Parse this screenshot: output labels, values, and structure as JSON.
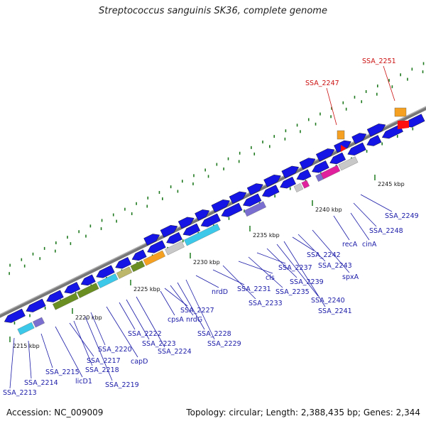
{
  "title": "Streptococcus sanguinis SK36, complete genome",
  "accession": "Accession: NC_009009",
  "topology": "Topology: circular; Length: 2,388,435 bp; Genes: 2,344",
  "colors": {
    "backbone": "#8c8c8c",
    "cds_forward": "#1515e6",
    "cds_reverse": "#1515e6",
    "label_blue": "#1a1aa8",
    "label_red": "#cc1111",
    "tick_green": "#1f7a1f",
    "olive": "#6b8e23",
    "cyan": "#3cc8e8",
    "orange": "#f5a020",
    "magenta": "#e0209c",
    "gray": "#c8c8c8",
    "khaki": "#bdb76b",
    "lavender": "#7a6fd0",
    "red": "#ff1010"
  },
  "kbp_labels": [
    "2215 kbp",
    "2220 kbp",
    "2225 kbp",
    "2230 kbp",
    "2235 kbp",
    "2240 kbp",
    "2245 kbp"
  ],
  "gene_labels": [
    "SSA_2213",
    "SSA_2214",
    "SSA_2215",
    "licD1",
    "SSA_2217",
    "SSA_2218",
    "SSA_2219",
    "SSA_2220",
    "capD",
    "SSA_2222",
    "SSA_2223",
    "SSA_2224",
    "cpsA",
    "SSA_2227",
    "nrdG",
    "SSA_2228",
    "SSA_2229",
    "nrdD",
    "SSA_2231",
    "SSA_2233",
    "cls",
    "SSA_2235",
    "SSA_2237",
    "SSA_2239",
    "SSA_2240",
    "SSA_2241",
    "SSA_2242",
    "SSA_2243",
    "spxA",
    "recA",
    "cinA",
    "SSA_2248",
    "SSA_2249"
  ],
  "red_labels": [
    "SSA_2247",
    "SSA_2251"
  ]
}
